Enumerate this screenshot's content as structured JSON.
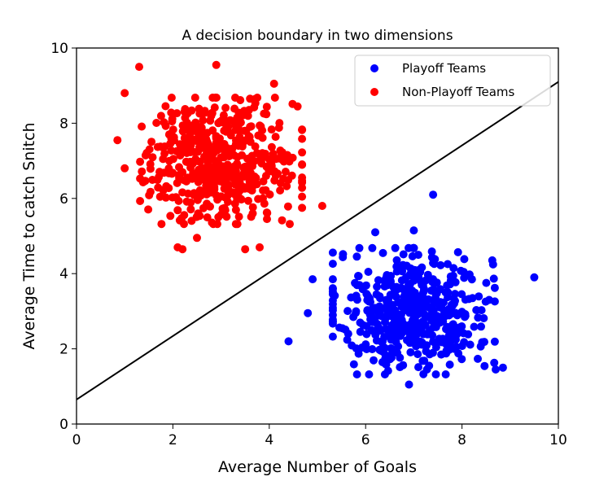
{
  "chart_data": {
    "type": "scatter",
    "title": "A decision boundary in two dimensions",
    "xlabel": "Average Number of Goals",
    "ylabel": "Average Time to catch Snitch",
    "xlim": [
      0,
      10
    ],
    "ylim": [
      0,
      10
    ],
    "xticks": [
      "0",
      "2",
      "4",
      "6",
      "8",
      "10"
    ],
    "yticks": [
      "0",
      "2",
      "4",
      "6",
      "8",
      "10"
    ],
    "grid": false,
    "legend_position": "top-right",
    "series": [
      {
        "name": "Playoff Teams",
        "color": "#0000ff",
        "distribution": {
          "mean": [
            7.0,
            3.0
          ],
          "std": [
            0.8,
            0.8
          ],
          "count": 500
        },
        "outliers": [
          [
            7.4,
            6.1
          ],
          [
            9.5,
            3.9
          ],
          [
            4.4,
            2.2
          ],
          [
            6.2,
            5.1
          ],
          [
            6.9,
            1.05
          ],
          [
            8.7,
            1.45
          ],
          [
            8.85,
            1.5
          ],
          [
            4.9,
            3.85
          ],
          [
            4.8,
            2.95
          ],
          [
            7.0,
            5.15
          ]
        ]
      },
      {
        "name": "Non-Playoff Teams",
        "color": "#ff0000",
        "distribution": {
          "mean": [
            3.0,
            7.0
          ],
          "std": [
            0.8,
            0.8
          ],
          "count": 500
        },
        "outliers": [
          [
            1.3,
            9.5
          ],
          [
            2.9,
            9.55
          ],
          [
            1.0,
            8.8
          ],
          [
            0.85,
            7.55
          ],
          [
            1.0,
            6.8
          ],
          [
            5.1,
            5.8
          ],
          [
            2.1,
            4.7
          ],
          [
            2.2,
            4.65
          ],
          [
            3.5,
            4.65
          ],
          [
            3.8,
            4.7
          ],
          [
            2.5,
            4.95
          ],
          [
            4.1,
            9.05
          ]
        ]
      }
    ],
    "decision_boundary": {
      "x": [
        0,
        10
      ],
      "y": [
        0.65,
        9.1
      ],
      "color": "#000000"
    }
  }
}
